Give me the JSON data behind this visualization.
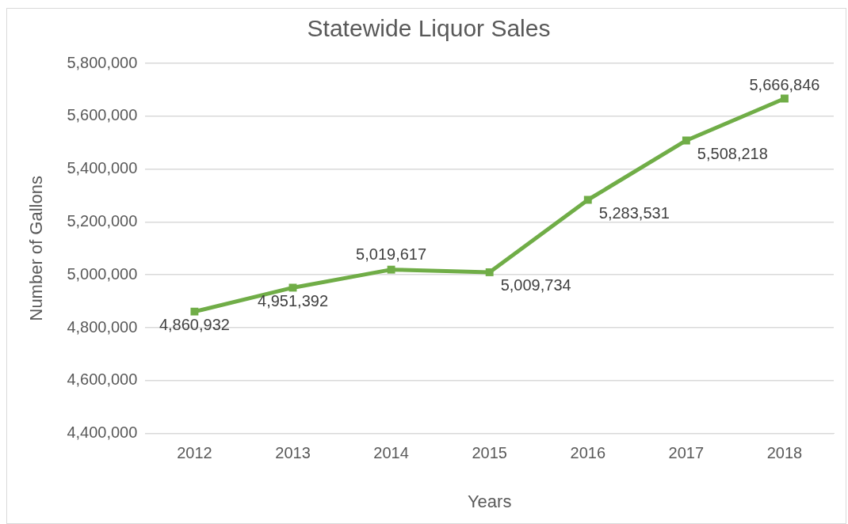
{
  "chart_data": {
    "type": "line",
    "title": "Statewide Liquor Sales",
    "xlabel": "Years",
    "ylabel": "Number of Gallons",
    "categories": [
      "2012",
      "2013",
      "2014",
      "2015",
      "2016",
      "2017",
      "2018"
    ],
    "series": [
      {
        "color": "#70ad47",
        "values": [
          4860932,
          4951392,
          5019617,
          5009734,
          5283531,
          5508218,
          5666846
        ],
        "value_labels": [
          "4,860,932",
          "4,951,392",
          "5,019,617",
          "5,009,734",
          "5,283,531",
          "5,508,218",
          "5,666,846"
        ]
      }
    ],
    "ylim": [
      4400000,
      5800000
    ],
    "yticks": [
      {
        "value": 4400000,
        "label": "4,400,000"
      },
      {
        "value": 4600000,
        "label": "4,600,000"
      },
      {
        "value": 4800000,
        "label": "4,800,000"
      },
      {
        "value": 5000000,
        "label": "5,000,000"
      },
      {
        "value": 5200000,
        "label": "5,200,000"
      },
      {
        "value": 5400000,
        "label": "5,400,000"
      },
      {
        "value": 5600000,
        "label": "5,600,000"
      },
      {
        "value": 5800000,
        "label": "5,800,000"
      }
    ],
    "grid": "y",
    "legend": false,
    "marker": "square",
    "line_style": "solid"
  }
}
